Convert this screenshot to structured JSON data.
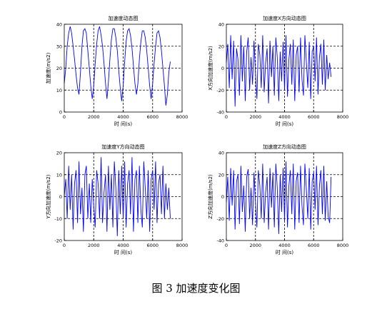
{
  "figure_caption": "图 3  加速度变化图",
  "chart_data": [
    {
      "type": "line",
      "title": "加速度动态图",
      "xlabel": "时 间(s)",
      "ylabel": "加速度(m/s2)",
      "xlim": [
        0,
        8000
      ],
      "ylim": [
        0,
        40
      ],
      "xticks": [
        0,
        2000,
        4000,
        6000,
        8000
      ],
      "yticks": [
        0,
        10,
        20,
        30,
        40
      ],
      "grid": true,
      "series": [
        {
          "color": "#0000ff",
          "x": [
            0,
            100,
            200,
            300,
            400,
            500,
            600,
            700,
            800,
            900,
            1000,
            1100,
            1200,
            1300,
            1400,
            1500,
            1600,
            1700,
            1800,
            1900,
            2000,
            2100,
            2200,
            2300,
            2400,
            2500,
            2600,
            2700,
            2800,
            2900,
            3000,
            3100,
            3200,
            3300,
            3400,
            3500,
            3600,
            3700,
            3800,
            3900,
            4000,
            4100,
            4200,
            4300,
            4400,
            4500,
            4600,
            4700,
            4800,
            4900,
            5000,
            5100,
            5200,
            5300,
            5400,
            5500,
            5600,
            5700,
            5800,
            5900,
            6000,
            6100,
            6200,
            6300,
            6400,
            6500,
            6600,
            6700,
            6800,
            6900,
            7000,
            7100,
            7200
          ],
          "y": [
            13,
            20,
            30,
            36,
            39,
            36,
            30,
            24,
            17,
            11,
            8,
            18,
            30,
            37,
            38,
            36,
            28,
            20,
            12,
            6,
            12,
            22,
            31,
            37,
            39,
            35,
            30,
            22,
            13,
            6,
            14,
            24,
            33,
            38,
            38,
            34,
            28,
            19,
            11,
            5,
            12,
            23,
            32,
            37,
            38,
            35,
            29,
            21,
            13,
            8,
            13,
            24,
            32,
            37,
            37,
            34,
            28,
            20,
            12,
            6,
            13,
            22,
            30,
            36,
            37,
            34,
            28,
            20,
            12,
            3,
            8,
            18,
            23
          ]
        }
      ]
    },
    {
      "type": "line",
      "title": "加速度X方向动态图",
      "xlabel": "时 间(s)",
      "ylabel": "X方向加速度(m/s2)",
      "xlim": [
        0,
        8000
      ],
      "ylim": [
        -40,
        40
      ],
      "xticks": [
        0,
        2000,
        4000,
        6000,
        8000
      ],
      "yticks": [
        -40,
        -20,
        0,
        20,
        40
      ],
      "grid": true,
      "series": [
        {
          "color": "#0000ff",
          "x": [
            0,
            100,
            200,
            300,
            400,
            500,
            600,
            700,
            800,
            900,
            1000,
            1100,
            1200,
            1300,
            1400,
            1500,
            1600,
            1700,
            1800,
            1900,
            2000,
            2100,
            2200,
            2300,
            2400,
            2500,
            2600,
            2700,
            2800,
            2900,
            3000,
            3100,
            3200,
            3300,
            3400,
            3500,
            3600,
            3700,
            3800,
            3900,
            4000,
            4100,
            4200,
            4300,
            4400,
            4500,
            4600,
            4700,
            4800,
            4900,
            5000,
            5100,
            5200,
            5300,
            5400,
            5500,
            5600,
            5700,
            5800,
            5900,
            6000,
            6100,
            6200,
            6300,
            6400,
            6500,
            6600,
            6700,
            6800,
            6900,
            7000,
            7100,
            7200
          ],
          "y": [
            5,
            22,
            -18,
            30,
            -10,
            25,
            -35,
            18,
            8,
            -25,
            30,
            -12,
            20,
            -30,
            15,
            28,
            -20,
            10,
            -15,
            25,
            -5,
            -28,
            22,
            12,
            -18,
            30,
            -22,
            5,
            18,
            -32,
            25,
            -8,
            20,
            -25,
            28,
            10,
            -30,
            15,
            -12,
            24,
            -20,
            30,
            -26,
            8,
            22,
            -15,
            26,
            -30,
            12,
            20,
            -22,
            28,
            -10,
            -25,
            30,
            5,
            -18,
            24,
            -28,
            15,
            20,
            -12,
            28,
            -24,
            10,
            22,
            -15,
            26,
            -20,
            12,
            -10,
            5,
            -8
          ]
        }
      ]
    },
    {
      "type": "line",
      "title": "加速度Y方向动态图",
      "xlabel": "时 间(s)",
      "ylabel": "Y方向加速度(m/s2)",
      "xlim": [
        0,
        8000
      ],
      "ylim": [
        -20,
        20
      ],
      "xticks": [
        0,
        2000,
        4000,
        6000,
        8000
      ],
      "yticks": [
        -20,
        -10,
        0,
        10,
        20
      ],
      "grid": true,
      "series": [
        {
          "color": "#0000ff",
          "x": [
            0,
            100,
            200,
            300,
            400,
            500,
            600,
            700,
            800,
            900,
            1000,
            1100,
            1200,
            1300,
            1400,
            1500,
            1600,
            1700,
            1800,
            1900,
            2000,
            2100,
            2200,
            2300,
            2400,
            2500,
            2600,
            2700,
            2800,
            2900,
            3000,
            3100,
            3200,
            3300,
            3400,
            3500,
            3600,
            3700,
            3800,
            3900,
            4000,
            4100,
            4200,
            4300,
            4400,
            4500,
            4600,
            4700,
            4800,
            4900,
            5000,
            5100,
            5200,
            5300,
            5400,
            5500,
            5600,
            5700,
            5800,
            5900,
            6000,
            6100,
            6200,
            6300,
            6400,
            6500,
            6600,
            6700,
            6800,
            6900,
            7000,
            7100,
            7200
          ],
          "y": [
            0,
            8,
            -10,
            14,
            -6,
            10,
            -15,
            6,
            12,
            -12,
            16,
            -8,
            4,
            -16,
            10,
            14,
            -10,
            6,
            -12,
            8,
            -4,
            -14,
            12,
            6,
            -10,
            18,
            -12,
            2,
            10,
            -16,
            14,
            -6,
            10,
            -14,
            16,
            4,
            -18,
            12,
            -8,
            14,
            -10,
            16,
            -14,
            6,
            12,
            -8,
            18,
            -16,
            8,
            12,
            -12,
            14,
            -6,
            -14,
            16,
            4,
            -10,
            12,
            -16,
            8,
            12,
            -6,
            16,
            -12,
            6,
            10,
            -8,
            14,
            -10,
            6,
            -6,
            4,
            -10
          ]
        }
      ]
    },
    {
      "type": "line",
      "title": "加速度Z方向动态图",
      "xlabel": "时 间(s)",
      "ylabel": "Z方向加速度(m/s2)",
      "xlim": [
        0,
        8000
      ],
      "ylim": [
        -40,
        40
      ],
      "xticks": [
        0,
        2000,
        4000,
        6000,
        8000
      ],
      "yticks": [
        -40,
        -20,
        0,
        20,
        40
      ],
      "grid": true,
      "series": [
        {
          "color": "#0000ff",
          "x": [
            0,
            100,
            200,
            300,
            400,
            500,
            600,
            700,
            800,
            900,
            1000,
            1100,
            1200,
            1300,
            1400,
            1500,
            1600,
            1700,
            1800,
            1900,
            2000,
            2100,
            2200,
            2300,
            2400,
            2500,
            2600,
            2700,
            2800,
            2900,
            3000,
            3100,
            3200,
            3300,
            3400,
            3500,
            3600,
            3700,
            3800,
            3900,
            4000,
            4100,
            4200,
            4300,
            4400,
            4500,
            4600,
            4700,
            4800,
            4900,
            5000,
            5100,
            5200,
            5300,
            5400,
            5500,
            5600,
            5700,
            5800,
            5900,
            6000,
            6100,
            6200,
            6300,
            6400,
            6500,
            6600,
            6700,
            6800,
            6900,
            7000,
            7100,
            7200
          ],
          "y": [
            -5,
            18,
            -22,
            26,
            -8,
            24,
            -30,
            14,
            20,
            -25,
            28,
            -14,
            10,
            -32,
            18,
            25,
            -20,
            8,
            -26,
            22,
            -6,
            -28,
            24,
            10,
            -20,
            30,
            -24,
            4,
            18,
            -30,
            26,
            -10,
            22,
            -28,
            30,
            8,
            -34,
            20,
            -14,
            26,
            -22,
            32,
            -28,
            10,
            24,
            -16,
            30,
            -30,
            14,
            22,
            -24,
            28,
            -8,
            -26,
            30,
            6,
            -20,
            26,
            -30,
            14,
            22,
            -12,
            28,
            -26,
            10,
            24,
            -16,
            28,
            -22,
            14,
            -18,
            -24,
            18
          ]
        }
      ]
    }
  ]
}
